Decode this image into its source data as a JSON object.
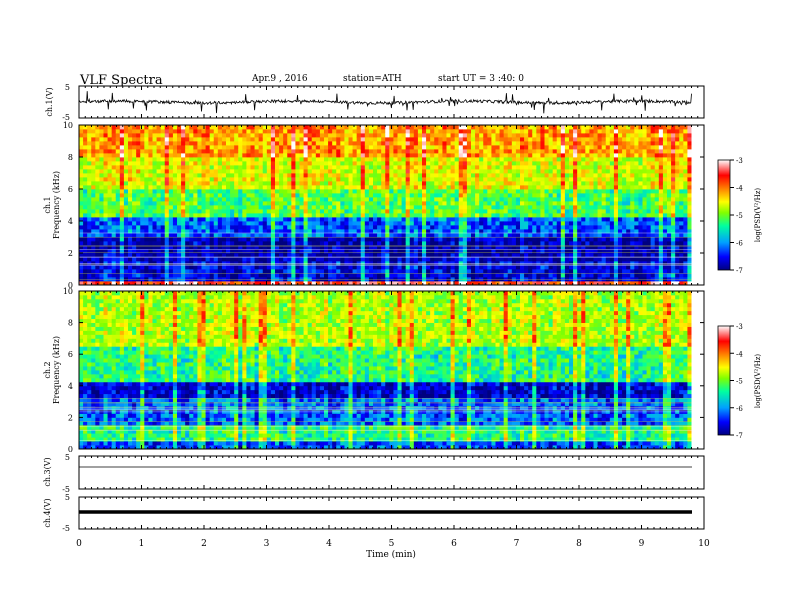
{
  "header": {
    "title": "VLF  Spectra",
    "date": "Apr.9  , 2016",
    "station": "station=ATH",
    "start": "start  UT  =   3  :40: 0"
  },
  "x_axis": {
    "label": "Time  (min)",
    "range": [
      0,
      10
    ],
    "ticks": [
      "0",
      "1",
      "2",
      "3",
      "4",
      "5",
      "6",
      "7",
      "8",
      "9",
      "10"
    ],
    "data_end": 9.8
  },
  "colorbar": {
    "label": "log(PSD(V²/Hz)",
    "range": [
      -7,
      -3
    ],
    "ticks": [
      "-3",
      "-4",
      "-5",
      "-6",
      "-7"
    ],
    "colors": [
      "#000080",
      "#0000ff",
      "#00a0ff",
      "#00ffa0",
      "#80ff00",
      "#ffff00",
      "#ff8000",
      "#ff0000",
      "#ffffff"
    ]
  },
  "chart_data": [
    {
      "type": "line",
      "panel": "ch1-waveform",
      "ylabel": "ch.1(V)",
      "ylim": [
        -5,
        5
      ],
      "yticks": [
        "5",
        "-5"
      ],
      "description_of_signal": "noisy waveform centered near 0 V with spikes"
    },
    {
      "type": "heatmap",
      "panel": "ch1-spectrogram",
      "channel_label": "ch.1",
      "ylabel": "Frequency  (kHz)",
      "ylim": [
        0,
        10
      ],
      "yticks": [
        "0",
        "2",
        "4",
        "6",
        "8",
        "10"
      ],
      "band_levels": [
        {
          "f": [
            0,
            0.3
          ],
          "log_psd": -3.5
        },
        {
          "f": [
            0.3,
            1.6
          ],
          "log_psd": -6.6
        },
        {
          "f": [
            1.6,
            3.0
          ],
          "log_psd": -6.8
        },
        {
          "f": [
            3.0,
            4.3
          ],
          "log_psd": -6.2
        },
        {
          "f": [
            4.3,
            6.0
          ],
          "log_psd": -5.2
        },
        {
          "f": [
            6.0,
            8.0
          ],
          "log_psd": -4.6
        },
        {
          "f": [
            8.0,
            10.0
          ],
          "log_psd": -4.1
        }
      ]
    },
    {
      "type": "heatmap",
      "panel": "ch2-spectrogram",
      "channel_label": "ch.2",
      "ylabel": "Frequency  (kHz)",
      "ylim": [
        0,
        10
      ],
      "yticks": [
        "0",
        "2",
        "4",
        "6",
        "8",
        "10"
      ],
      "band_levels": [
        {
          "f": [
            0,
            0.4
          ],
          "log_psd": -6.3
        },
        {
          "f": [
            0.4,
            1.4
          ],
          "log_psd": -5.4
        },
        {
          "f": [
            1.4,
            3.3
          ],
          "log_psd": -6.2
        },
        {
          "f": [
            3.3,
            4.3
          ],
          "log_psd": -6.7
        },
        {
          "f": [
            4.3,
            6.5
          ],
          "log_psd": -5.4
        },
        {
          "f": [
            6.5,
            10.0
          ],
          "log_psd": -4.8
        }
      ]
    },
    {
      "type": "line",
      "panel": "ch3-waveform",
      "ylabel": "ch.3(V)",
      "ylim": [
        -5,
        5
      ],
      "yticks": [
        "5",
        "-5"
      ],
      "level_v": 0
    },
    {
      "type": "line",
      "panel": "ch4-waveform",
      "ylabel": "ch.4(V)",
      "ylim": [
        -5,
        5
      ],
      "yticks": [
        "5",
        "-5"
      ],
      "level_v": 0
    }
  ]
}
